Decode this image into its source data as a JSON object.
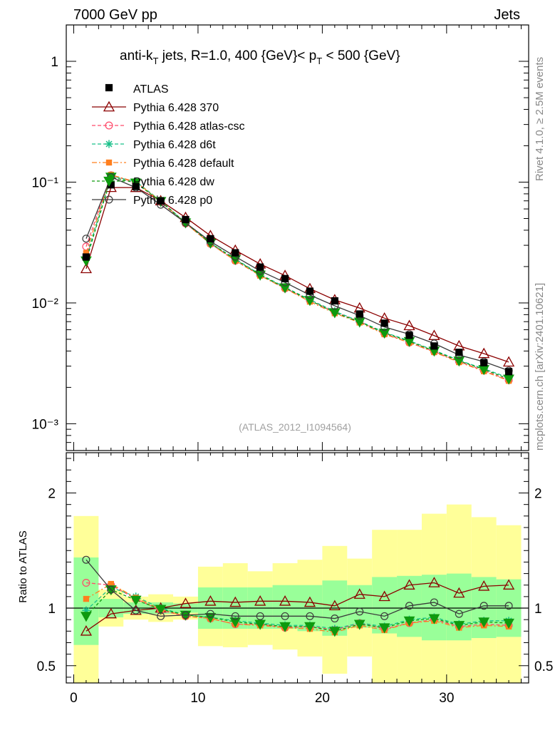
{
  "header": {
    "left": "7000 GeV pp",
    "right": "Jets"
  },
  "side_labels": {
    "rivet": "Rivet 4.1.0, ≥ 2.5M events",
    "mcplots": "mcplots.cern.ch [arXiv:2401.10621]"
  },
  "colors": {
    "atlas": "#000000",
    "p370": "#8b0000",
    "atlascsc": "#ff4a6a",
    "d6t": "#19c08a",
    "default": "#ff7f1e",
    "dw": "#0e9a0e",
    "p0": "#3a3a3a",
    "band_inner": "#99ff99",
    "band_outer": "#ffff99"
  },
  "chart_data": {
    "type": "line",
    "title_parts": {
      "pre": "anti-k",
      "sub1": "T",
      "mid": " jets, R=1.0, 400 {GeV}< p",
      "sub2": "T",
      "post": " < 500 {GeV}"
    },
    "watermark": "(ATLAS_2012_I1094564)",
    "xlabel": "",
    "ylabel_main": "",
    "ylabel_ratio": "Ratio to ATLAS",
    "xlim": [
      -0.6,
      36.6
    ],
    "ylim_main": [
      0.0006,
      2.0
    ],
    "ylim_ratio": [
      0.35,
      2.35
    ],
    "x_ticks": [
      "0",
      "10",
      "20",
      "30"
    ],
    "y_ticks_main": [
      "10⁻³",
      "10⁻²",
      "10⁻¹",
      "1"
    ],
    "y_ticks_ratio": [
      "0.5",
      "1",
      "2"
    ],
    "x": [
      1,
      3,
      5,
      7,
      9,
      11,
      13,
      15,
      17,
      19,
      21,
      23,
      25,
      27,
      29,
      31,
      33,
      35
    ],
    "data": {
      "name": "ATLAS",
      "values": [
        0.024,
        0.095,
        0.092,
        0.07,
        0.049,
        0.034,
        0.026,
        0.0198,
        0.0159,
        0.0125,
        0.0104,
        0.0081,
        0.0068,
        0.0054,
        0.0044,
        0.0039,
        0.0032,
        0.0027
      ],
      "band_inner": [
        [
          0.68,
          1.44
        ],
        [
          0.92,
          1.08
        ],
        [
          0.95,
          1.05
        ],
        [
          0.95,
          1.05
        ],
        [
          0.96,
          1.04
        ],
        [
          0.82,
          1.18
        ],
        [
          0.82,
          1.18
        ],
        [
          0.82,
          1.18
        ],
        [
          0.82,
          1.2
        ],
        [
          0.8,
          1.2
        ],
        [
          0.76,
          1.24
        ],
        [
          0.83,
          1.2
        ],
        [
          0.78,
          1.27
        ],
        [
          0.75,
          1.28
        ],
        [
          0.72,
          1.29
        ],
        [
          0.72,
          1.3
        ],
        [
          0.74,
          1.27
        ],
        [
          0.75,
          1.25
        ]
      ],
      "band_outer": [
        [
          0.35,
          1.8
        ],
        [
          0.84,
          1.16
        ],
        [
          0.9,
          1.1
        ],
        [
          0.88,
          1.12
        ],
        [
          0.9,
          1.1
        ],
        [
          0.67,
          1.36
        ],
        [
          0.66,
          1.39
        ],
        [
          0.68,
          1.32
        ],
        [
          0.64,
          1.39
        ],
        [
          0.58,
          1.42
        ],
        [
          0.43,
          1.54
        ],
        [
          0.58,
          1.43
        ],
        [
          0.35,
          1.68
        ],
        [
          0.35,
          1.68
        ],
        [
          0.35,
          1.82
        ],
        [
          0.35,
          1.9
        ],
        [
          0.35,
          1.79
        ],
        [
          0.35,
          1.72
        ]
      ]
    },
    "series": [
      {
        "name": "Pythia 6.428 370",
        "key": "p370",
        "marker": "triangle",
        "dash": "",
        "ratio": [
          0.8,
          0.95,
          0.98,
          1.0,
          1.04,
          1.06,
          1.05,
          1.06,
          1.06,
          1.05,
          1.02,
          1.12,
          1.1,
          1.2,
          1.22,
          1.13,
          1.19,
          1.2
        ]
      },
      {
        "name": "Pythia 6.428 atlas-csc",
        "key": "atlascsc",
        "marker": "circle-open",
        "dash": "5,3",
        "ratio": [
          1.22,
          1.2,
          1.08,
          0.98,
          0.93,
          0.91,
          0.86,
          0.86,
          0.83,
          0.84,
          0.81,
          0.87,
          0.82,
          0.87,
          0.9,
          0.84,
          0.86,
          0.85
        ]
      },
      {
        "name": "Pythia 6.428 d6t",
        "key": "d6t",
        "marker": "star",
        "dash": "5,3",
        "ratio": [
          0.98,
          1.18,
          1.1,
          1.0,
          0.94,
          0.92,
          0.89,
          0.87,
          0.85,
          0.85,
          0.82,
          0.87,
          0.84,
          0.9,
          0.92,
          0.86,
          0.89,
          0.89
        ]
      },
      {
        "name": "Pythia 6.428 default",
        "key": "default",
        "marker": "square",
        "dash": "7,3,2,3",
        "ratio": [
          1.08,
          1.21,
          1.09,
          0.99,
          0.93,
          0.91,
          0.86,
          0.85,
          0.83,
          0.82,
          0.79,
          0.85,
          0.81,
          0.87,
          0.89,
          0.83,
          0.85,
          0.84
        ]
      },
      {
        "name": "Pythia 6.428 dw",
        "key": "dw",
        "marker": "triangle-down",
        "dash": "4,3",
        "ratio": [
          0.93,
          1.16,
          1.07,
          0.99,
          0.94,
          0.92,
          0.88,
          0.86,
          0.84,
          0.84,
          0.8,
          0.86,
          0.83,
          0.89,
          0.91,
          0.85,
          0.88,
          0.87
        ]
      },
      {
        "name": "Pythia 6.428 p0",
        "key": "p0",
        "marker": "circle-open",
        "dash": "",
        "ratio": [
          1.42,
          1.16,
          0.98,
          0.93,
          0.94,
          0.95,
          0.93,
          0.93,
          0.93,
          0.93,
          0.91,
          0.97,
          0.93,
          1.02,
          1.05,
          0.95,
          1.02,
          1.02
        ]
      }
    ]
  }
}
